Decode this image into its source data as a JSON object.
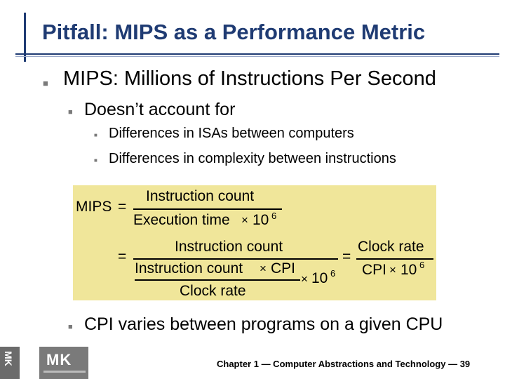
{
  "slide": {
    "title": "Pitfall: MIPS as a Performance Metric",
    "bullets": {
      "l1": "MIPS: Millions of Instructions Per Second",
      "l2": "Doesn’t account for",
      "l3a": "Differences in ISAs between computers",
      "l3b": "Differences in complexity between instructions",
      "l2b": "CPI varies between programs on a given CPU"
    },
    "formula": {
      "mips": "MIPS",
      "eq": "=",
      "instruction_count": "Instruction count",
      "execution_time": "Execution time",
      "times": "×",
      "ten": "10",
      "exp6": "6",
      "clock_rate": "Clock rate",
      "cpi": "CPI"
    },
    "logo": "MK",
    "sidebar_label": "MK",
    "footer": "Chapter 1 — Computer Abstractions and Technology — 39"
  }
}
